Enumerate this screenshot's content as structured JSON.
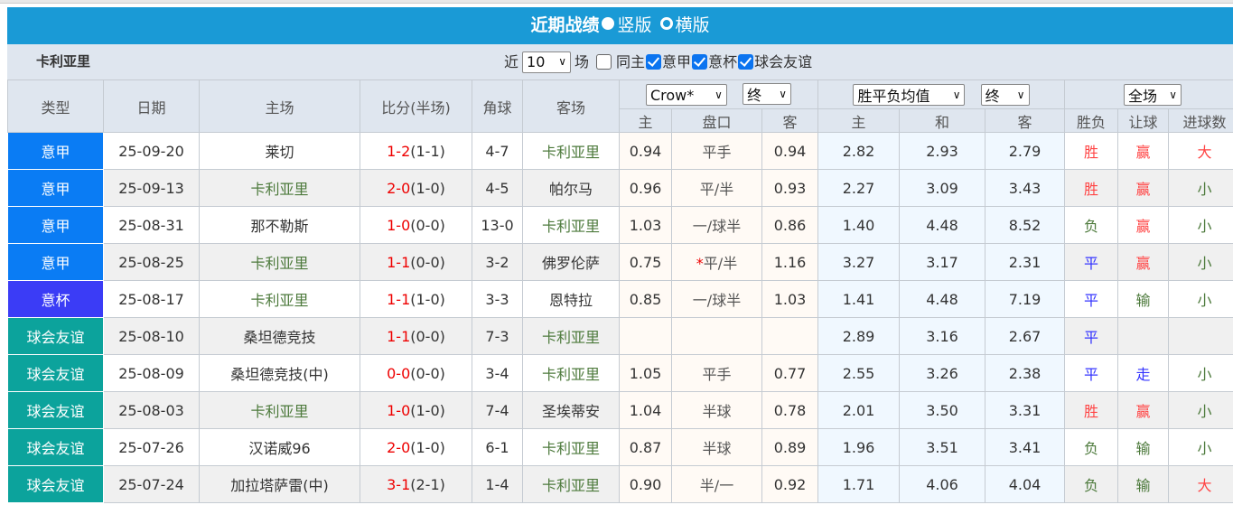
{
  "title": {
    "text": "近期战绩",
    "opt1": "竖版",
    "opt2": "横版"
  },
  "filter": {
    "team": "卡利亚里",
    "near": "近",
    "count": "10",
    "unit": "场",
    "same_home": "同主",
    "checks": [
      "意甲",
      "意杯",
      "球会友谊"
    ]
  },
  "headers": {
    "type": "类型",
    "date": "日期",
    "home": "主场",
    "score": "比分(半场)",
    "corner": "角球",
    "away": "客场",
    "company": "Crow*",
    "stage1": "终",
    "eu": "胜平负均值",
    "stage2": "终",
    "scope": "全场",
    "sub": [
      "主",
      "盘口",
      "客",
      "主",
      "和",
      "客",
      "胜负",
      "让球",
      "进球数"
    ]
  },
  "colors": {
    "意甲": "#0a7cf4",
    "意杯": "#3b3cf6",
    "球会友谊": "#0ca39c",
    "title_bar": "#1a9ad6"
  },
  "rows": [
    {
      "type": "意甲",
      "date": "25-09-20",
      "home": "莱切",
      "home_team": false,
      "score": "1-2",
      "half": "(1-1)",
      "corner": "4-7",
      "away": "卡利亚里",
      "away_team": true,
      "oh": "0.94",
      "pan": "平手",
      "star": "",
      "oa": "0.94",
      "eh": "2.82",
      "ed": "2.93",
      "ea": "2.79",
      "res": "胜",
      "rang": "赢",
      "goal": "大"
    },
    {
      "type": "意甲",
      "date": "25-09-13",
      "home": "卡利亚里",
      "home_team": true,
      "score": "2-0",
      "half": "(1-0)",
      "corner": "4-5",
      "away": "帕尔马",
      "away_team": false,
      "oh": "0.96",
      "pan": "平/半",
      "star": "",
      "oa": "0.93",
      "eh": "2.27",
      "ed": "3.09",
      "ea": "3.43",
      "res": "胜",
      "rang": "赢",
      "goal": "小"
    },
    {
      "type": "意甲",
      "date": "25-08-31",
      "home": "那不勒斯",
      "home_team": false,
      "score": "1-0",
      "half": "(0-0)",
      "corner": "13-0",
      "away": "卡利亚里",
      "away_team": true,
      "oh": "1.03",
      "pan": "一/球半",
      "star": "",
      "oa": "0.86",
      "eh": "1.40",
      "ed": "4.48",
      "ea": "8.52",
      "res": "负",
      "rang": "赢",
      "goal": "小"
    },
    {
      "type": "意甲",
      "date": "25-08-25",
      "home": "卡利亚里",
      "home_team": true,
      "score": "1-1",
      "half": "(0-0)",
      "corner": "3-2",
      "away": "佛罗伦萨",
      "away_team": false,
      "oh": "0.75",
      "pan": "平/半",
      "star": "*",
      "oa": "1.16",
      "eh": "3.27",
      "ed": "3.17",
      "ea": "2.31",
      "res": "平",
      "rang": "赢",
      "goal": "小"
    },
    {
      "type": "意杯",
      "date": "25-08-17",
      "home": "卡利亚里",
      "home_team": true,
      "score": "1-1",
      "half": "(1-0)",
      "corner": "3-3",
      "away": "恩特拉",
      "away_team": false,
      "oh": "0.85",
      "pan": "一/球半",
      "star": "",
      "oa": "1.03",
      "eh": "1.41",
      "ed": "4.48",
      "ea": "7.19",
      "res": "平",
      "rang": "输",
      "goal": "小"
    },
    {
      "type": "球会友谊",
      "date": "25-08-10",
      "home": "桑坦德竞技",
      "home_team": false,
      "score": "1-1",
      "half": "(0-0)",
      "corner": "7-3",
      "away": "卡利亚里",
      "away_team": true,
      "oh": "",
      "pan": "",
      "star": "",
      "oa": "",
      "eh": "2.89",
      "ed": "3.16",
      "ea": "2.67",
      "res": "平",
      "rang": "",
      "goal": ""
    },
    {
      "type": "球会友谊",
      "date": "25-08-09",
      "home": "桑坦德竞技(中)",
      "home_team": false,
      "score": "0-0",
      "half": "(0-0)",
      "corner": "3-4",
      "away": "卡利亚里",
      "away_team": true,
      "oh": "1.05",
      "pan": "平手",
      "star": "",
      "oa": "0.77",
      "eh": "2.55",
      "ed": "3.26",
      "ea": "2.38",
      "res": "平",
      "rang": "走",
      "goal": "小"
    },
    {
      "type": "球会友谊",
      "date": "25-08-03",
      "home": "卡利亚里",
      "home_team": true,
      "score": "1-0",
      "half": "(1-0)",
      "corner": "7-4",
      "away": "圣埃蒂安",
      "away_team": false,
      "oh": "1.04",
      "pan": "半球",
      "star": "",
      "oa": "0.78",
      "eh": "2.01",
      "ed": "3.50",
      "ea": "3.31",
      "res": "胜",
      "rang": "赢",
      "goal": "小"
    },
    {
      "type": "球会友谊",
      "date": "25-07-26",
      "home": "汉诺威96",
      "home_team": false,
      "score": "2-0",
      "half": "(1-0)",
      "corner": "6-1",
      "away": "卡利亚里",
      "away_team": true,
      "oh": "0.87",
      "pan": "半球",
      "star": "",
      "oa": "0.89",
      "eh": "1.96",
      "ed": "3.51",
      "ea": "3.41",
      "res": "负",
      "rang": "输",
      "goal": "小"
    },
    {
      "type": "球会友谊",
      "date": "25-07-24",
      "home": "加拉塔萨雷(中)",
      "home_team": false,
      "score": "3-1",
      "half": "(2-1)",
      "corner": "1-4",
      "away": "卡利亚里",
      "away_team": true,
      "oh": "0.90",
      "pan": "半/一",
      "star": "",
      "oa": "0.92",
      "eh": "1.71",
      "ed": "4.06",
      "ea": "4.04",
      "res": "负",
      "rang": "输",
      "goal": "大"
    }
  ]
}
